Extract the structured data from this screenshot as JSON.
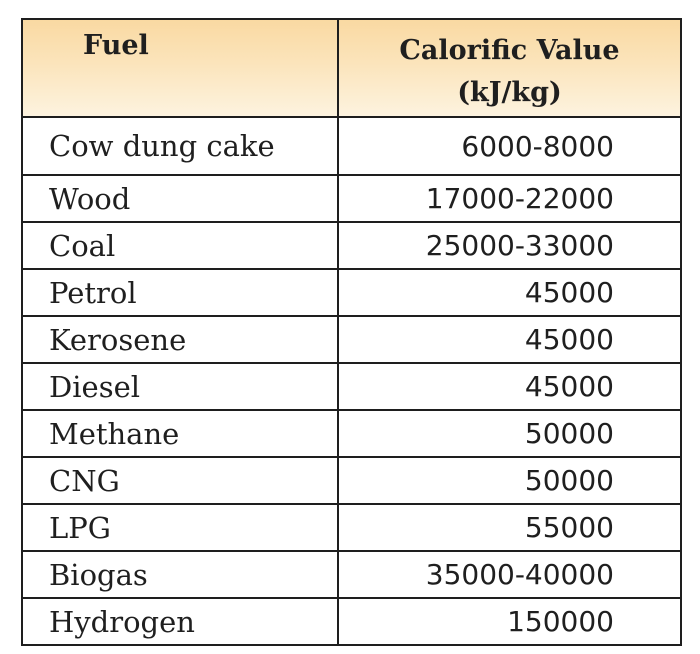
{
  "chart_data": {
    "type": "table",
    "columns": [
      "Fuel",
      [
        "Calorific Value",
        "(kJ/kg)"
      ]
    ],
    "rows": [
      {
        "fuel": "Cow dung cake",
        "value": "6000-8000"
      },
      {
        "fuel": "Wood",
        "value": "17000-22000"
      },
      {
        "fuel": "Coal",
        "value": "25000-33000"
      },
      {
        "fuel": "Petrol",
        "value": "45000"
      },
      {
        "fuel": "Kerosene",
        "value": "45000"
      },
      {
        "fuel": "Diesel",
        "value": "45000"
      },
      {
        "fuel": "Methane",
        "value": "50000"
      },
      {
        "fuel": "CNG",
        "value": "50000"
      },
      {
        "fuel": "LPG",
        "value": "55000"
      },
      {
        "fuel": "Biogas",
        "value": "35000-40000"
      },
      {
        "fuel": "Hydrogen",
        "value": "150000"
      }
    ]
  },
  "colors": {
    "header_background": "#fbe4bb",
    "border": "#1e1e1e",
    "text": "#1f1f1f"
  }
}
